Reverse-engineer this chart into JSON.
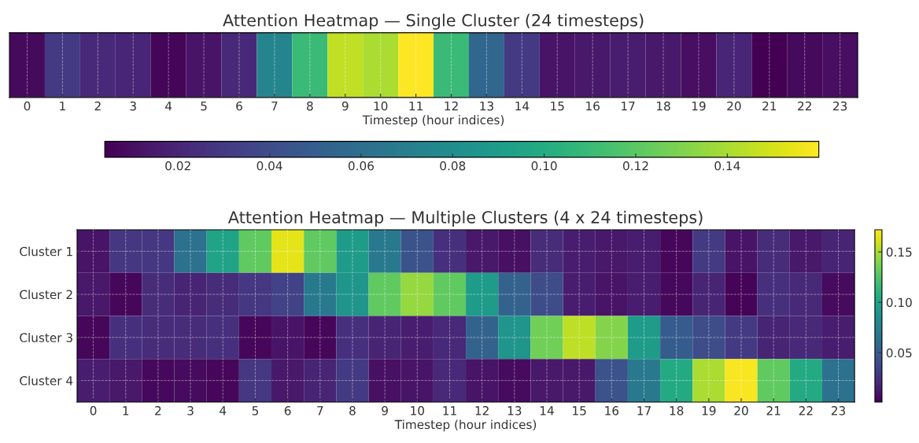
{
  "chart_data": [
    {
      "type": "heatmap",
      "title": "Attention Heatmap — Single Cluster (24 timesteps)",
      "xlabel": "Timestep (hour indices)",
      "categories": [
        "0",
        "1",
        "2",
        "3",
        "4",
        "5",
        "6",
        "7",
        "8",
        "9",
        "10",
        "11",
        "12",
        "13",
        "14",
        "15",
        "16",
        "17",
        "18",
        "19",
        "20",
        "21",
        "22",
        "23"
      ],
      "y_categories": [
        null
      ],
      "cells": [
        [
          0.008,
          0.03,
          0.022,
          0.02,
          0.006,
          0.012,
          0.022,
          0.075,
          0.11,
          0.145,
          0.14,
          0.16,
          0.11,
          0.055,
          0.03,
          0.012,
          0.014,
          0.016,
          0.014,
          0.01,
          0.02,
          0.004,
          0.008,
          0.01
        ]
      ],
      "clim": [
        0.004,
        0.16
      ],
      "cticks": [
        0.02,
        0.04,
        0.06,
        0.08,
        {
          "value": 0.1,
          "label": "0.10"
        },
        0.12,
        0.14
      ],
      "grid": "x"
    },
    {
      "type": "heatmap",
      "title": "Attention Heatmap — Multiple Clusters (4 x 24 timesteps)",
      "xlabel": "Timestep (hour indices)",
      "categories": [
        "0",
        "1",
        "2",
        "3",
        "4",
        "5",
        "6",
        "7",
        "8",
        "9",
        "10",
        "11",
        "12",
        "13",
        "14",
        "15",
        "16",
        "17",
        "18",
        "19",
        "20",
        "21",
        "22",
        "23"
      ],
      "y_categories": [
        "Cluster 1",
        "Cluster 2",
        "Cluster 3",
        "Cluster 4"
      ],
      "cells": [
        [
          0.01,
          0.028,
          0.028,
          0.065,
          0.1,
          0.13,
          0.165,
          0.13,
          0.095,
          0.07,
          0.045,
          0.025,
          0.012,
          0.008,
          0.022,
          0.015,
          0.012,
          0.015,
          0.004,
          0.03,
          0.01,
          0.022,
          0.012,
          0.018
        ],
        [
          0.012,
          0.004,
          0.022,
          0.018,
          0.022,
          0.028,
          0.035,
          0.07,
          0.09,
          0.13,
          0.145,
          0.13,
          0.095,
          0.055,
          0.04,
          0.015,
          0.01,
          0.015,
          0.005,
          0.018,
          0.003,
          0.025,
          0.02,
          0.006
        ],
        [
          0.004,
          0.025,
          0.022,
          0.022,
          0.025,
          0.004,
          0.01,
          0.004,
          0.025,
          0.018,
          0.015,
          0.02,
          0.055,
          0.09,
          0.135,
          0.155,
          0.14,
          0.095,
          0.05,
          0.04,
          0.03,
          0.018,
          0.02,
          0.015
        ],
        [
          0.015,
          0.012,
          0.005,
          0.006,
          0.004,
          0.028,
          0.012,
          0.018,
          0.03,
          0.008,
          0.01,
          0.02,
          0.01,
          0.006,
          0.012,
          0.012,
          0.045,
          0.07,
          0.105,
          0.15,
          0.17,
          0.13,
          0.105,
          0.065
        ]
      ],
      "clim": [
        0.001,
        0.172
      ],
      "cticks": [
        0.05,
        {
          "value": 0.1,
          "label": "0.10"
        },
        0.15
      ],
      "grid": true
    }
  ]
}
